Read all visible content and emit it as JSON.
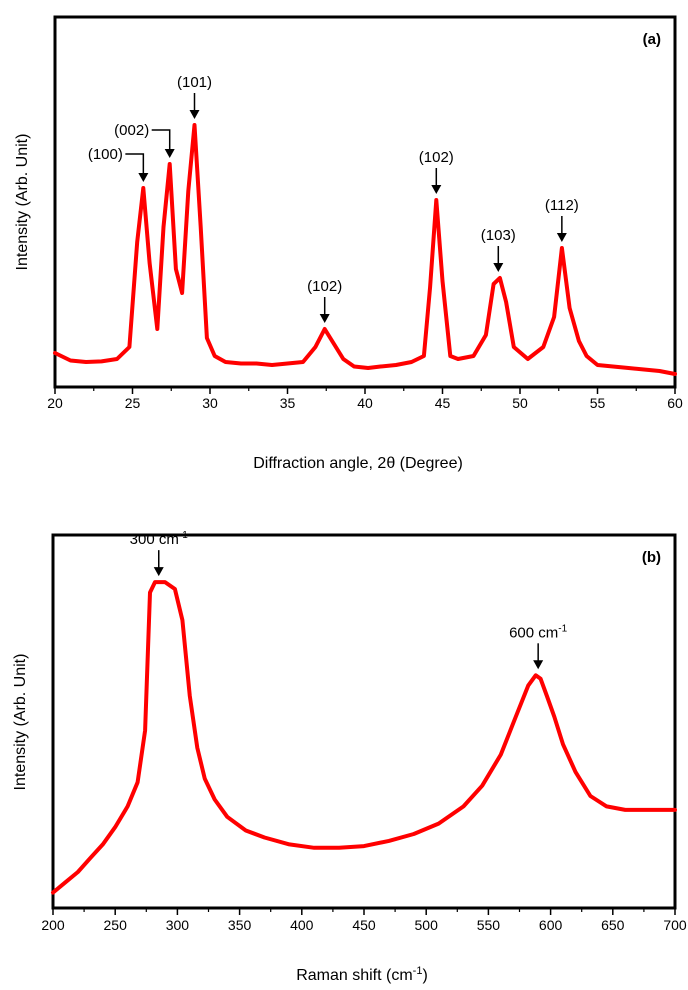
{
  "chart_data": [
    {
      "type": "line",
      "panel_label": "(a)",
      "xlabel": "Diffraction angle, 2θ (Degree)",
      "ylabel": "Intensity (Arb. Unit)",
      "xlim": [
        20,
        60
      ],
      "ylim": [
        0,
        1
      ],
      "x_ticks": [
        20,
        25,
        30,
        35,
        40,
        45,
        50,
        55,
        60
      ],
      "y_ticks_labeled": false,
      "grid": false,
      "line_color": "#ff0000",
      "series": [
        {
          "x": [
            20,
            21,
            22,
            23,
            24,
            24.8,
            25.3,
            25.7,
            26.1,
            26.6,
            27.0,
            27.4,
            27.8,
            28.2,
            28.6,
            29.0,
            29.4,
            29.8,
            30.3,
            31,
            32,
            33,
            34,
            35,
            36,
            36.8,
            37.4,
            38.0,
            38.6,
            39.3,
            40.2,
            41,
            42,
            43,
            43.8,
            44.2,
            44.6,
            45.0,
            45.5,
            46,
            47,
            47.8,
            48.3,
            48.7,
            49.1,
            49.6,
            50.5,
            51.5,
            52.2,
            52.7,
            53.2,
            53.8,
            54.3,
            55,
            56,
            57,
            58,
            59,
            60
          ],
          "y": [
            0.08,
            0.055,
            0.05,
            0.052,
            0.06,
            0.1,
            0.45,
            0.63,
            0.38,
            0.16,
            0.5,
            0.71,
            0.36,
            0.28,
            0.62,
            0.84,
            0.5,
            0.13,
            0.07,
            0.05,
            0.045,
            0.045,
            0.04,
            0.045,
            0.05,
            0.1,
            0.16,
            0.11,
            0.06,
            0.035,
            0.03,
            0.035,
            0.04,
            0.05,
            0.07,
            0.3,
            0.59,
            0.32,
            0.07,
            0.06,
            0.07,
            0.14,
            0.31,
            0.33,
            0.25,
            0.1,
            0.06,
            0.1,
            0.2,
            0.43,
            0.23,
            0.12,
            0.07,
            0.04,
            0.035,
            0.03,
            0.025,
            0.02,
            0.01
          ]
        }
      ],
      "annotations": [
        {
          "label": "(100)",
          "x": 25.7,
          "y": 0.63
        },
        {
          "label": "(002)",
          "x": 27.4,
          "y": 0.71
        },
        {
          "label": "(101)",
          "x": 29.0,
          "y": 0.84
        },
        {
          "label": "(102)",
          "x": 37.4,
          "y": 0.16
        },
        {
          "label": "(102)",
          "x": 44.6,
          "y": 0.59
        },
        {
          "label": "(103)",
          "x": 48.6,
          "y": 0.33
        },
        {
          "label": "(112)",
          "x": 52.7,
          "y": 0.43
        }
      ]
    },
    {
      "type": "line",
      "panel_label": "(b)",
      "xlabel_main": "Raman shift  (cm",
      "xlabel_sup": "-1",
      "xlabel_end": ")",
      "ylabel": "Intensity (Arb. Unit)",
      "xlim": [
        200,
        700
      ],
      "ylim": [
        0,
        1
      ],
      "x_ticks": [
        200,
        250,
        300,
        350,
        400,
        450,
        500,
        550,
        600,
        650,
        700
      ],
      "y_ticks_labeled": false,
      "grid": false,
      "line_color": "#ff0000",
      "series": [
        {
          "x": [
            200,
            210,
            220,
            230,
            240,
            250,
            260,
            268,
            274,
            278,
            282,
            290,
            298,
            304,
            310,
            316,
            322,
            330,
            340,
            355,
            370,
            390,
            410,
            430,
            450,
            470,
            490,
            510,
            530,
            545,
            560,
            572,
            582,
            588,
            592,
            597,
            603,
            610,
            620,
            632,
            645,
            660,
            680,
            700
          ],
          "y": [
            0.03,
            0.06,
            0.09,
            0.13,
            0.17,
            0.22,
            0.28,
            0.35,
            0.5,
            0.9,
            0.93,
            0.93,
            0.91,
            0.82,
            0.6,
            0.45,
            0.36,
            0.3,
            0.25,
            0.21,
            0.19,
            0.17,
            0.16,
            0.16,
            0.165,
            0.18,
            0.2,
            0.23,
            0.28,
            0.34,
            0.43,
            0.54,
            0.63,
            0.66,
            0.65,
            0.6,
            0.54,
            0.46,
            0.38,
            0.31,
            0.28,
            0.27,
            0.27,
            0.27
          ]
        }
      ],
      "annotations": [
        {
          "label_main": "300 cm",
          "label_sup": "-1",
          "x": 285,
          "y": 0.93
        },
        {
          "label_main": "600 cm",
          "label_sup": "-1",
          "x": 590,
          "y": 0.66
        }
      ]
    }
  ]
}
